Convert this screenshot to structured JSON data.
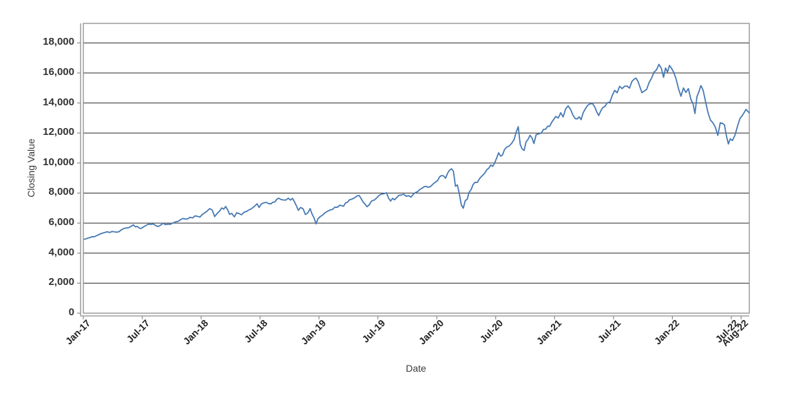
{
  "window": {
    "background": "#ffffff"
  },
  "chart_data": {
    "type": "line",
    "title": "",
    "xlabel": "Date",
    "ylabel": "Closing Value",
    "ylim": [
      0,
      19300
    ],
    "grid": "horizontal-only",
    "legend": "none",
    "xtick_rotation": -45,
    "colors": {
      "line": "#4679b4",
      "grid": "#2a2a2a",
      "frame": "#8c8c8c",
      "axis": "#8c8c8c",
      "text": "#333333"
    },
    "yticks": [
      {
        "value": 0,
        "label": "0"
      },
      {
        "value": 2000,
        "label": "2,000"
      },
      {
        "value": 4000,
        "label": "4,000"
      },
      {
        "value": 6000,
        "label": "6,000"
      },
      {
        "value": 8000,
        "label": "8,000"
      },
      {
        "value": 10000,
        "label": "10,000"
      },
      {
        "value": 12000,
        "label": "12,000"
      },
      {
        "value": 14000,
        "label": "14,000"
      },
      {
        "value": 16000,
        "label": "16,000"
      },
      {
        "value": 18000,
        "label": "18,000"
      }
    ],
    "xticks": [
      {
        "month": 0,
        "label": "Jan-17"
      },
      {
        "month": 6,
        "label": "Jul-17"
      },
      {
        "month": 12,
        "label": "Jan-18"
      },
      {
        "month": 18,
        "label": "Jul-18"
      },
      {
        "month": 24,
        "label": "Jan-19"
      },
      {
        "month": 30,
        "label": "Jul-19"
      },
      {
        "month": 36,
        "label": "Jan-20"
      },
      {
        "month": 42,
        "label": "Jul-20"
      },
      {
        "month": 48,
        "label": "Jan-21"
      },
      {
        "month": 54,
        "label": "Jul-21"
      },
      {
        "month": 60,
        "label": "Jan-22"
      },
      {
        "month": 66,
        "label": "Jul-22"
      },
      {
        "month": 67,
        "label": "Aug-22"
      }
    ],
    "series": [
      {
        "name": "Closing Value",
        "months": [
          {
            "m": "Jan-17",
            "v": [
              4920,
              4960,
              5010,
              5045,
              5100
            ]
          },
          {
            "m": "Feb-17",
            "v": [
              5090,
              5170,
              5250,
              5320
            ]
          },
          {
            "m": "Mar-17",
            "v": [
              5360,
              5400,
              5420,
              5370,
              5440
            ]
          },
          {
            "m": "Apr-17",
            "v": [
              5430,
              5390,
              5430,
              5550
            ]
          },
          {
            "m": "May-17",
            "v": [
              5640,
              5680,
              5700,
              5790
            ]
          },
          {
            "m": "Jun-17",
            "v": [
              5880,
              5750,
              5780,
              5660,
              5650
            ]
          },
          {
            "m": "Jul-17",
            "v": [
              5750,
              5840,
              5930,
              5920
            ]
          },
          {
            "m": "Aug-17",
            "v": [
              5940,
              5830,
              5770,
              5870
            ]
          },
          {
            "m": "Sep-17",
            "v": [
              5990,
              5900,
              5930,
              5920
            ]
          },
          {
            "m": "Oct-17",
            "v": [
              6010,
              6080,
              6110,
              6210
            ]
          },
          {
            "m": "Nov-17",
            "v": [
              6310,
              6270,
              6280,
              6390
            ]
          },
          {
            "m": "Dec-17",
            "v": [
              6340,
              6480,
              6450,
              6400
            ]
          },
          {
            "m": "Jan-18",
            "v": [
              6580,
              6690,
              6810,
              6970
            ]
          },
          {
            "m": "Feb-18",
            "v": [
              6870,
              6430,
              6640,
              6800
            ]
          },
          {
            "m": "Mar-18",
            "v": [
              7010,
              6930,
              7110,
              6880,
              6580
            ]
          },
          {
            "m": "Apr-18",
            "v": [
              6650,
              6420,
              6690,
              6630
            ]
          },
          {
            "m": "May-18",
            "v": [
              6560,
              6720,
              6780,
              6880
            ]
          },
          {
            "m": "Jun-18",
            "v": [
              6950,
              7050,
              7160,
              7290,
              7040
            ]
          },
          {
            "m": "Jul-18",
            "v": [
              7270,
              7350,
              7380,
              7300
            ]
          },
          {
            "m": "Aug-18",
            "v": [
              7280,
              7390,
              7410,
              7580,
              7660
            ]
          },
          {
            "m": "Sep-18",
            "v": [
              7570,
              7540,
              7530,
              7660
            ]
          },
          {
            "m": "Oct-18",
            "v": [
              7530,
              7650,
              7420,
              7160,
              6850
            ]
          },
          {
            "m": "Nov-18",
            "v": [
              7040,
              6960,
              6570,
              6690
            ]
          },
          {
            "m": "Dec-18",
            "v": [
              6970,
              6590,
              6350,
              5950,
              6290
            ]
          },
          {
            "m": "Jan-19",
            "v": [
              6430,
              6540,
              6690,
              6790
            ]
          },
          {
            "m": "Feb-19",
            "v": [
              6870,
              6910,
              7060,
              7050
            ]
          },
          {
            "m": "Mar-19",
            "v": [
              7190,
              7170,
              7120,
              7340,
              7390
            ]
          },
          {
            "m": "Apr-19",
            "v": [
              7560,
              7600,
              7690,
              7810
            ]
          },
          {
            "m": "May-19",
            "v": [
              7840,
              7630,
              7400,
              7260,
              7090
            ]
          },
          {
            "m": "Jun-19",
            "v": [
              7230,
              7480,
              7530,
              7670
            ]
          },
          {
            "m": "Jul-19",
            "v": [
              7850,
              7930,
              7960,
              8020
            ]
          },
          {
            "m": "Aug-19",
            "v": [
              7650,
              7470,
              7650,
              7550,
              7690
            ]
          },
          {
            "m": "Sep-19",
            "v": [
              7850,
              7870,
              7920,
              7790
            ]
          },
          {
            "m": "Oct-19",
            "v": [
              7830,
              7730,
              7930,
              8050
            ]
          },
          {
            "m": "Nov-19",
            "v": [
              8120,
              8250,
              8320,
              8420,
              8450
            ]
          },
          {
            "m": "Dec-19",
            "v": [
              8380,
              8440,
              8610,
              8730
            ]
          },
          {
            "m": "Jan-20",
            "v": [
              8850,
              9090,
              9170,
              9140,
              8990
            ]
          },
          {
            "m": "Feb-20",
            "v": [
              9320,
              9520,
              9620,
              9450,
              8460
            ]
          },
          {
            "m": "Mar-20",
            "v": [
              8540,
              7950,
              7220,
              6990,
              7490
            ]
          },
          {
            "m": "Apr-20",
            "v": [
              7590,
              8060,
              8230,
              8570,
              8720
            ]
          },
          {
            "m": "May-20",
            "v": [
              8710,
              8980,
              9150,
              9320
            ]
          },
          {
            "m": "Jun-20",
            "v": [
              9560,
              9660,
              9870,
              9780,
              10010
            ]
          },
          {
            "m": "Jul-20",
            "v": [
              10340,
              10680,
              10460,
              10540,
              10900
            ]
          },
          {
            "m": "Aug-20",
            "v": [
              11060,
              11130,
              11310,
              11560
            ]
          },
          {
            "m": "Sep-20",
            "v": [
              12090,
              12420,
              11230,
              10940,
              10840
            ]
          },
          {
            "m": "Oct-20",
            "v": [
              11420,
              11580,
              11850,
              11670,
              11300
            ]
          },
          {
            "m": "Nov-20",
            "v": [
              11890,
              11940,
              11990,
              12240
            ]
          },
          {
            "m": "Dec-20",
            "v": [
              12260,
              12460,
              12440,
              12710,
              12890
            ]
          },
          {
            "m": "Jan-21",
            "v": [
              13100,
              13000,
              13350,
              13070
            ]
          },
          {
            "m": "Feb-21",
            "v": [
              13600,
              13810,
              13580,
              13190
            ]
          },
          {
            "m": "Mar-21",
            "v": [
              12960,
              12940,
              13080,
              12890,
              13330
            ]
          },
          {
            "m": "Apr-21",
            "v": [
              13600,
              13850,
              13940,
              13960
            ]
          },
          {
            "m": "May-21",
            "v": [
              13720,
              13390,
              13160,
              13470,
              13690
            ]
          },
          {
            "m": "Jun-21",
            "v": [
              13770,
              14020,
              14050,
              14500
            ]
          },
          {
            "m": "Jul-21",
            "v": [
              14840,
              14680,
              15110,
              14960
            ]
          },
          {
            "m": "Aug-21",
            "v": [
              15110,
              15130,
              14990,
              15430
            ]
          },
          {
            "m": "Sep-21",
            "v": [
              15580,
              15650,
              15430,
              15050,
              14690
            ]
          },
          {
            "m": "Oct-21",
            "v": [
              14790,
              14900,
              15360,
              15640
            ]
          },
          {
            "m": "Nov-21",
            "v": [
              16050,
              16200,
              16570,
              16310
            ]
          },
          {
            "m": "Dec-21",
            "v": [
              15710,
              16330,
              16060,
              16500,
              16320
            ]
          },
          {
            "m": "Jan-22",
            "v": [
              16060,
              15600,
              14950,
              14450
            ]
          },
          {
            "m": "Feb-22",
            "v": [
              15000,
              14700,
              14960,
              14250
            ]
          },
          {
            "m": "Mar-22",
            "v": [
              13950,
              13300,
              14420,
              14750,
              15160
            ]
          },
          {
            "m": "Apr-22",
            "v": [
              14860,
              14110,
              13360,
              12860
            ]
          },
          {
            "m": "May-22",
            "v": [
              12690,
              12380,
              11840,
              12680
            ]
          },
          {
            "m": "Jun-22",
            "v": [
              12640,
              12550,
              11830,
              11270,
              11610
            ]
          },
          {
            "m": "Jul-22",
            "v": [
              11500,
              11860,
              12440,
              12950
            ]
          },
          {
            "m": "Aug-22",
            "v": [
              13210,
              13570,
              13340
            ]
          }
        ]
      }
    ]
  }
}
